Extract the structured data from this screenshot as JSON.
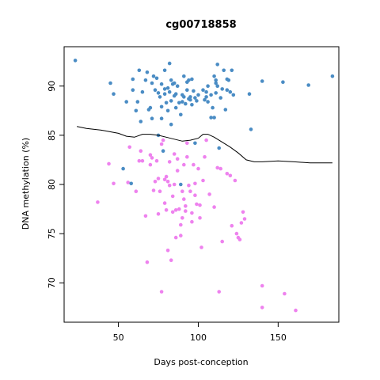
{
  "chart_data": {
    "type": "scatter",
    "title": "cg00718858",
    "xlabel": "Days post-conception",
    "ylabel": "DNA methylation (%)",
    "xlim": [
      16,
      188
    ],
    "ylim": [
      66,
      94
    ],
    "xticks": [
      50,
      100,
      150
    ],
    "yticks": [
      70,
      75,
      80,
      85,
      90
    ],
    "grid": false,
    "legend": "none",
    "colors": {
      "blue_series": "#4a8cc4",
      "pink_series": "#ee82ee",
      "trend": "#000000"
    },
    "series": [
      {
        "color": "blue_series",
        "points": [
          [
            23,
            92.6
          ],
          [
            45,
            90.3
          ],
          [
            47,
            89.2
          ],
          [
            55,
            88.4
          ],
          [
            59,
            90.7
          ],
          [
            59,
            89.6
          ],
          [
            61,
            87.5
          ],
          [
            62,
            88.4
          ],
          [
            63,
            91.6
          ],
          [
            64,
            86.4
          ],
          [
            65,
            89.4
          ],
          [
            67,
            90.6
          ],
          [
            68,
            91.4
          ],
          [
            69,
            87.6
          ],
          [
            70,
            87.8
          ],
          [
            71,
            90.3
          ],
          [
            71,
            86.7
          ],
          [
            72,
            91.0
          ],
          [
            73,
            89.6
          ],
          [
            74,
            90.8
          ],
          [
            75,
            89.3
          ],
          [
            75,
            85.0
          ],
          [
            76,
            88.9
          ],
          [
            77,
            90.2
          ],
          [
            77,
            87.9
          ],
          [
            77,
            86.7
          ],
          [
            78,
            83.4
          ],
          [
            79,
            91.6
          ],
          [
            79,
            89.7
          ],
          [
            79,
            89.2
          ],
          [
            80,
            88.3
          ],
          [
            81,
            87.5
          ],
          [
            81,
            89.8
          ],
          [
            82,
            92.3
          ],
          [
            82,
            89.4
          ],
          [
            83,
            90.6
          ],
          [
            83,
            88.5
          ],
          [
            83,
            86.1
          ],
          [
            84,
            90.2
          ],
          [
            85,
            89.0
          ],
          [
            85,
            90.3
          ],
          [
            86,
            89.2
          ],
          [
            86,
            87.8
          ],
          [
            87,
            90.0
          ],
          [
            88,
            88.3
          ],
          [
            89,
            87.1
          ],
          [
            89,
            80.0
          ],
          [
            90,
            89.1
          ],
          [
            90,
            88.4
          ],
          [
            91,
            91.0
          ],
          [
            91,
            88.9
          ],
          [
            92,
            88.2
          ],
          [
            93,
            89.6
          ],
          [
            93,
            90.4
          ],
          [
            94,
            88.7
          ],
          [
            94,
            90.6
          ],
          [
            95,
            88.6
          ],
          [
            95,
            88.9
          ],
          [
            96,
            88.1
          ],
          [
            96,
            90.7
          ],
          [
            97,
            89.5
          ],
          [
            98,
            88.8
          ],
          [
            98,
            84.2
          ],
          [
            99,
            88.5
          ],
          [
            100,
            89.1
          ],
          [
            103,
            89.6
          ],
          [
            104,
            88.6
          ],
          [
            105,
            88.9
          ],
          [
            105,
            89.4
          ],
          [
            106,
            88.4
          ],
          [
            106,
            90.0
          ],
          [
            108,
            86.8
          ],
          [
            108,
            89.1
          ],
          [
            109,
            87.8
          ],
          [
            110,
            91.0
          ],
          [
            110,
            86.8
          ],
          [
            111,
            89.3
          ],
          [
            111,
            90.6
          ],
          [
            111,
            90.3
          ],
          [
            112,
            92.2
          ],
          [
            112,
            90.0
          ],
          [
            113,
            83.7
          ],
          [
            114,
            88.8
          ],
          [
            115,
            89.7
          ],
          [
            116,
            91.6
          ],
          [
            117,
            87.6
          ],
          [
            118,
            89.6
          ],
          [
            118,
            90.7
          ],
          [
            119,
            90.6
          ],
          [
            120,
            89.4
          ],
          [
            121,
            91.6
          ],
          [
            122,
            89.1
          ],
          [
            132,
            89.2
          ],
          [
            133,
            85.6
          ],
          [
            140,
            90.5
          ],
          [
            153,
            90.4
          ],
          [
            169,
            90.1
          ],
          [
            184,
            91.0
          ],
          [
            53,
            81.6
          ],
          [
            58,
            80.1
          ]
        ]
      },
      {
        "color": "pink_series",
        "points": [
          [
            37,
            78.2
          ],
          [
            44,
            82.1
          ],
          [
            47,
            80.1
          ],
          [
            56,
            80.2
          ],
          [
            57,
            83.8
          ],
          [
            61,
            79.3
          ],
          [
            63,
            82.4
          ],
          [
            64,
            83.4
          ],
          [
            65,
            82.4
          ],
          [
            67,
            76.8
          ],
          [
            68,
            72.1
          ],
          [
            70,
            83.0
          ],
          [
            70,
            82.0
          ],
          [
            71,
            82.7
          ],
          [
            72,
            79.4
          ],
          [
            73,
            80.3
          ],
          [
            74,
            82.4
          ],
          [
            75,
            80.6
          ],
          [
            75,
            77.0
          ],
          [
            76,
            79.3
          ],
          [
            77,
            69.1
          ],
          [
            77,
            84.1
          ],
          [
            78,
            84.5
          ],
          [
            79,
            80.5
          ],
          [
            79,
            78.1
          ],
          [
            80,
            80.8
          ],
          [
            80,
            77.4
          ],
          [
            81,
            80.3
          ],
          [
            81,
            73.3
          ],
          [
            82,
            82.3
          ],
          [
            82,
            79.9
          ],
          [
            83,
            72.3
          ],
          [
            84,
            78.8
          ],
          [
            84,
            77.2
          ],
          [
            85,
            80.0
          ],
          [
            85,
            83.1
          ],
          [
            86,
            77.4
          ],
          [
            86,
            74.6
          ],
          [
            87,
            82.6
          ],
          [
            87,
            81.4
          ],
          [
            88,
            77.5
          ],
          [
            89,
            75.9
          ],
          [
            89,
            74.8
          ],
          [
            90,
            79.3
          ],
          [
            90,
            76.6
          ],
          [
            91,
            78.5
          ],
          [
            91,
            82.0
          ],
          [
            92,
            77.8
          ],
          [
            92,
            77.3
          ],
          [
            93,
            84.2
          ],
          [
            93,
            82.8
          ],
          [
            94,
            79.9
          ],
          [
            95,
            79.3
          ],
          [
            96,
            77.1
          ],
          [
            96,
            76.2
          ],
          [
            97,
            82.0
          ],
          [
            98,
            78.9
          ],
          [
            98,
            80.1
          ],
          [
            99,
            78.0
          ],
          [
            100,
            81.6
          ],
          [
            101,
            77.9
          ],
          [
            101,
            76.6
          ],
          [
            102,
            73.6
          ],
          [
            103,
            80.4
          ],
          [
            104,
            82.8
          ],
          [
            105,
            84.5
          ],
          [
            107,
            79.0
          ],
          [
            110,
            77.7
          ],
          [
            112,
            81.7
          ],
          [
            113,
            69.1
          ],
          [
            114,
            81.6
          ],
          [
            115,
            74.2
          ],
          [
            118,
            81.1
          ],
          [
            120,
            80.9
          ],
          [
            121,
            75.8
          ],
          [
            123,
            80.4
          ],
          [
            124,
            75.0
          ],
          [
            125,
            74.6
          ],
          [
            126,
            74.4
          ],
          [
            127,
            76.1
          ],
          [
            128,
            77.2
          ],
          [
            129,
            76.5
          ],
          [
            140,
            69.7
          ],
          [
            140,
            67.5
          ],
          [
            154,
            68.9
          ],
          [
            161,
            67.2
          ]
        ]
      }
    ],
    "trend_line": {
      "x": [
        24,
        30,
        40,
        50,
        55,
        60,
        65,
        70,
        75,
        80,
        85,
        90,
        95,
        100,
        103,
        106,
        110,
        115,
        120,
        125,
        130,
        135,
        140,
        150,
        160,
        170,
        184
      ],
      "y": [
        85.9,
        85.7,
        85.5,
        85.2,
        84.9,
        84.8,
        85.1,
        85.1,
        85.0,
        84.8,
        84.6,
        84.4,
        84.5,
        84.7,
        85.1,
        85.1,
        84.8,
        84.3,
        83.8,
        83.2,
        82.5,
        82.3,
        82.3,
        82.4,
        82.3,
        82.2,
        82.2
      ]
    }
  }
}
